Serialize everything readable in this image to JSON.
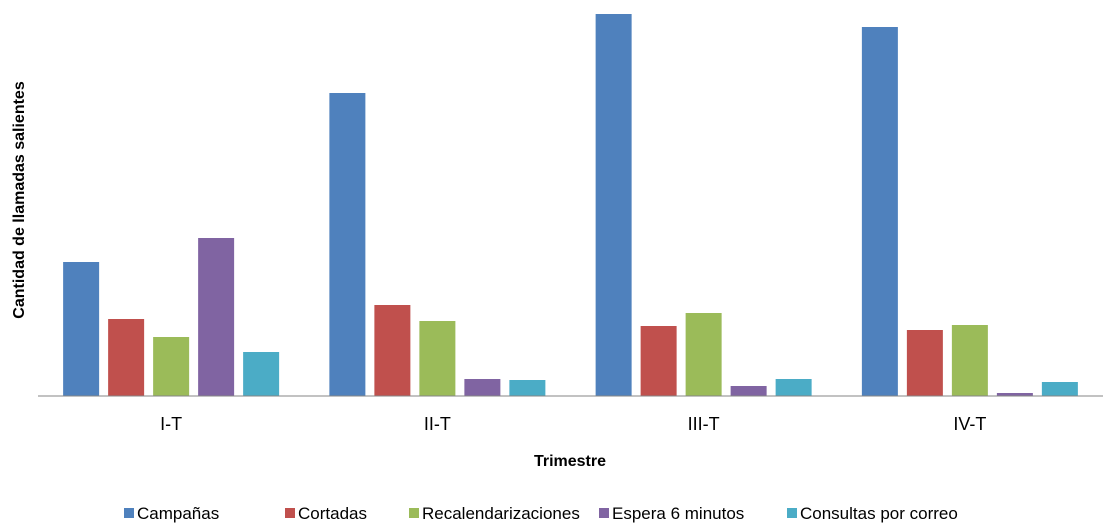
{
  "chart_data": {
    "type": "bar",
    "xlabel": "Trimestre",
    "ylabel": "Cantidad de llamadas salientes",
    "categories": [
      "I-T",
      "II-T",
      "III-T",
      "IV-T"
    ],
    "series": [
      {
        "name": "Campañas",
        "color": "#4F81BD",
        "values": [
          134,
          303,
          382,
          369
        ]
      },
      {
        "name": "Cortadas",
        "color": "#C0504D",
        "values": [
          77,
          91,
          70,
          66
        ]
      },
      {
        "name": "Recalendarizaciones",
        "color": "#9BBB59",
        "values": [
          59,
          75,
          83,
          71
        ]
      },
      {
        "name": "Espera 6 minutos",
        "color": "#8064A2",
        "values": [
          158,
          17,
          10,
          3
        ]
      },
      {
        "name": "Consultas por correo",
        "color": "#4BACC6",
        "values": [
          44,
          16,
          17,
          14
        ]
      }
    ],
    "ylim": [
      0,
      382
    ],
    "grid": false,
    "legend_position": "bottom"
  }
}
